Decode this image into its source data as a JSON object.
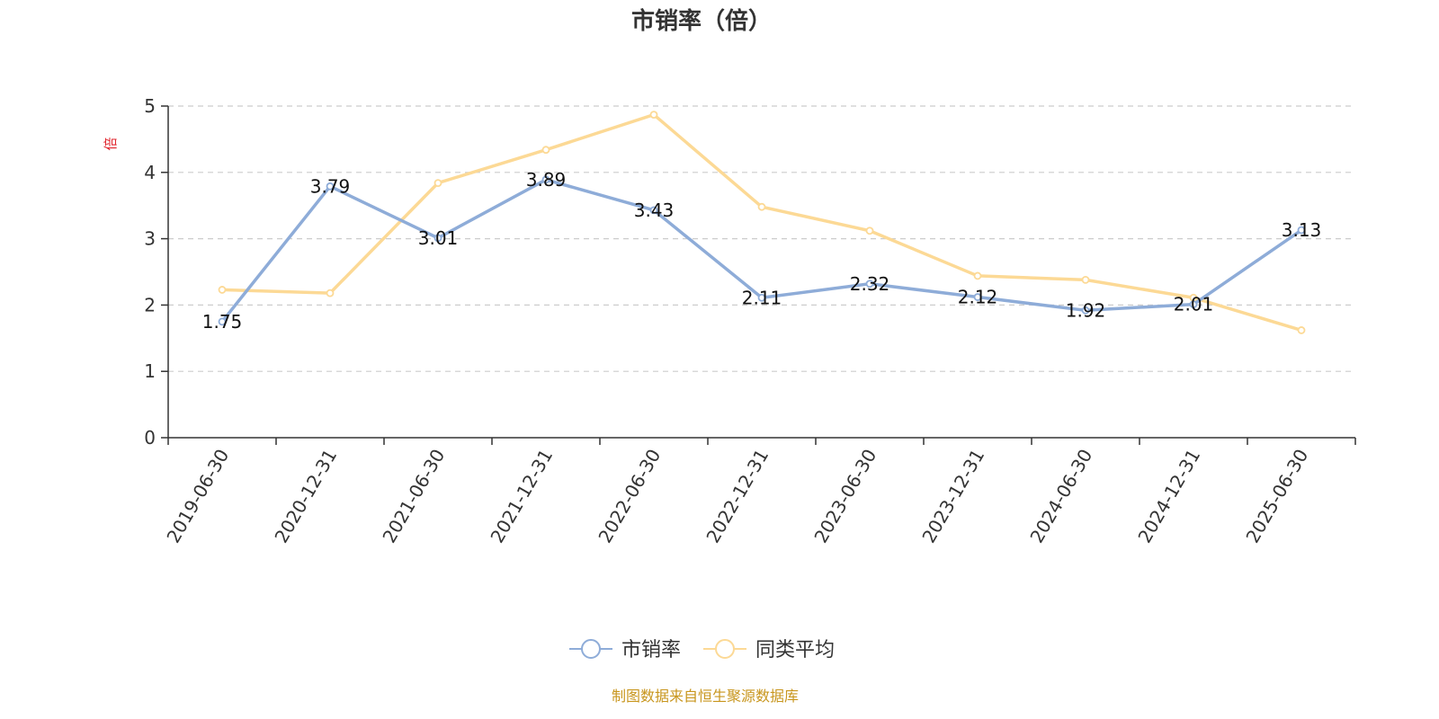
{
  "chart_data": {
    "type": "line",
    "title": "市销率（倍）",
    "ylabel": "倍",
    "ylim": [
      0,
      5
    ],
    "yticks": [
      0,
      1,
      2,
      3,
      4,
      5
    ],
    "grid": true,
    "legend_position": "bottom-center",
    "categories": [
      "2019-06-30",
      "2020-12-31",
      "2021-06-30",
      "2021-12-31",
      "2022-06-30",
      "2022-12-31",
      "2023-06-30",
      "2023-12-31",
      "2024-06-30",
      "2024-12-31",
      "2025-06-30"
    ],
    "series": [
      {
        "name": "市销率",
        "color": "#8eacd8",
        "values": [
          1.75,
          3.79,
          3.01,
          3.89,
          3.43,
          2.11,
          2.32,
          2.12,
          1.92,
          2.01,
          3.13
        ],
        "labels_shown": true
      },
      {
        "name": "同类平均",
        "color": "#fcd995",
        "values": [
          2.23,
          2.18,
          3.84,
          4.34,
          4.87,
          3.48,
          3.12,
          2.44,
          2.38,
          2.11,
          1.62
        ],
        "labels_shown": false
      }
    ]
  },
  "source": "制图数据来自恒生聚源数据库",
  "colors": {
    "axis": "#333333",
    "grid": "#cccccc",
    "ylabel": "#e0242c",
    "source": "#c8961e"
  }
}
